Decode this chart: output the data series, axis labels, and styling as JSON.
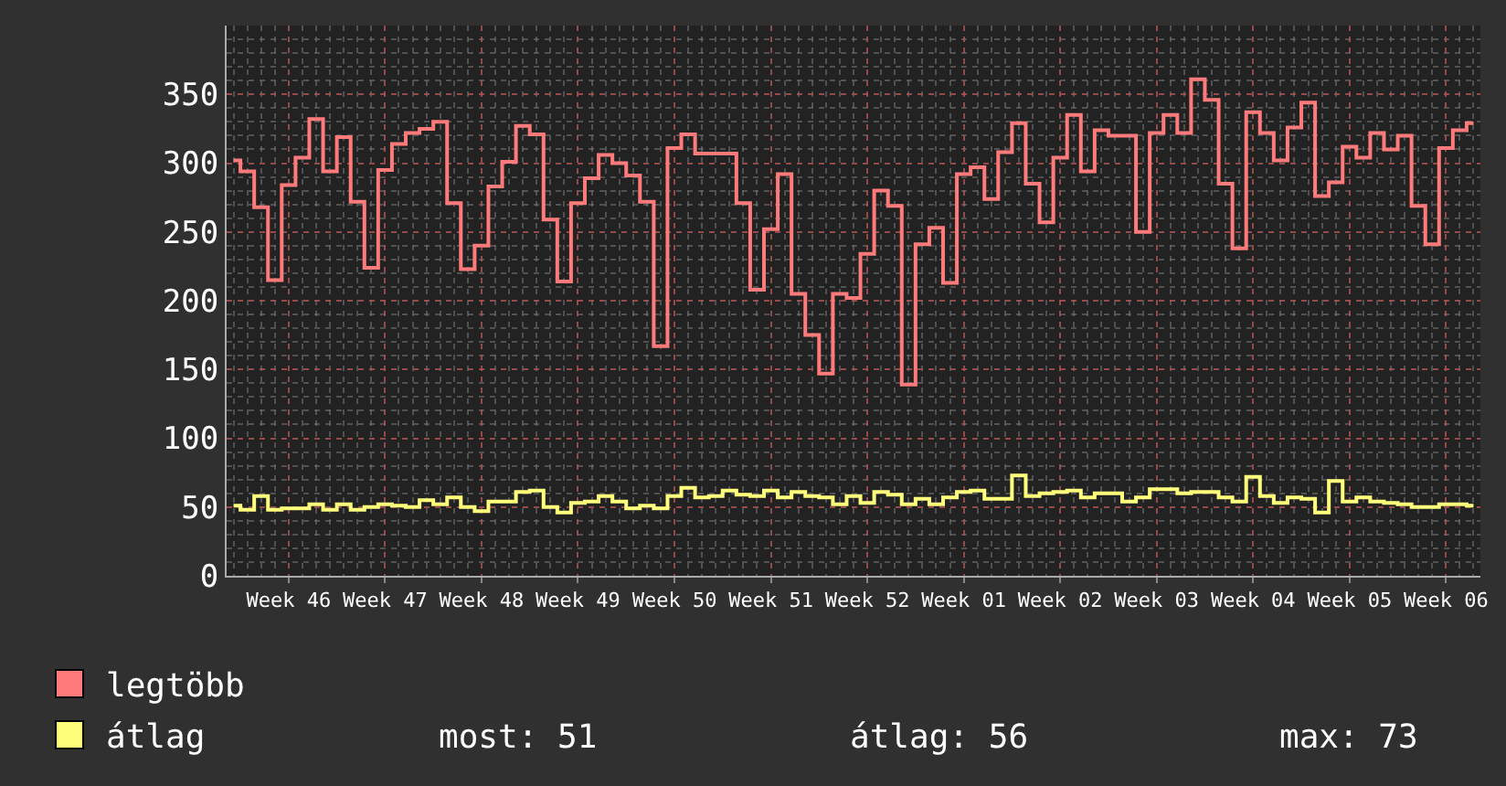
{
  "chart_data": {
    "type": "step",
    "categories": [
      null,
      null,
      null,
      null,
      "Week 46",
      null,
      null,
      null,
      null,
      null,
      null,
      "Week 47",
      null,
      null,
      null,
      null,
      null,
      null,
      "Week 48",
      null,
      null,
      null,
      null,
      null,
      null,
      "Week 49",
      null,
      null,
      null,
      null,
      null,
      null,
      "Week 50",
      null,
      null,
      null,
      null,
      null,
      null,
      "Week 51",
      null,
      null,
      null,
      null,
      null,
      null,
      "Week 52",
      null,
      null,
      null,
      null,
      null,
      null,
      "Week 01",
      null,
      null,
      null,
      null,
      null,
      null,
      "Week 02",
      null,
      null,
      null,
      null,
      null,
      null,
      "Week 03",
      null,
      null,
      null,
      null,
      null,
      null,
      "Week 04",
      null,
      null,
      null,
      null,
      null,
      null,
      "Week 05",
      null,
      null,
      null,
      null,
      null,
      null,
      "Week 06",
      null,
      null
    ],
    "series": [
      {
        "name": "legtöbb",
        "color": "#ff7b7b",
        "values": [
          302,
          294,
          268,
          215,
          284,
          304,
          332,
          294,
          319,
          272,
          224,
          295,
          314,
          322,
          325,
          330,
          271,
          223,
          240,
          283,
          301,
          327,
          321,
          259,
          214,
          271,
          289,
          306,
          300,
          291,
          272,
          167,
          311,
          321,
          307,
          307,
          307,
          271,
          208,
          252,
          292,
          205,
          175,
          147,
          205,
          202,
          234,
          280,
          269,
          139,
          241,
          253,
          213,
          292,
          297,
          274,
          308,
          329,
          285,
          257,
          304,
          335,
          294,
          324,
          320,
          320,
          250,
          322,
          335,
          322,
          361,
          346,
          285,
          238,
          337,
          322,
          302,
          326,
          344,
          276,
          286,
          312,
          304,
          322,
          310,
          320,
          269,
          241,
          311,
          324,
          329
        ]
      },
      {
        "name": "átlag",
        "color": "#ffff7b",
        "values": [
          51,
          48,
          58,
          48,
          49,
          49,
          52,
          48,
          52,
          48,
          50,
          52,
          51,
          50,
          55,
          52,
          57,
          50,
          47,
          54,
          54,
          61,
          62,
          50,
          46,
          53,
          54,
          58,
          54,
          49,
          51,
          49,
          58,
          64,
          57,
          58,
          62,
          59,
          58,
          62,
          57,
          61,
          58,
          57,
          52,
          58,
          53,
          61,
          59,
          52,
          56,
          52,
          57,
          61,
          62,
          56,
          56,
          73,
          58,
          60,
          61,
          62,
          57,
          60,
          60,
          54,
          57,
          63,
          63,
          60,
          61,
          61,
          57,
          54,
          72,
          58,
          53,
          57,
          56,
          46,
          69,
          54,
          57,
          54,
          53,
          52,
          50,
          50,
          52,
          52,
          51
        ]
      }
    ],
    "ylim": [
      0,
      400
    ],
    "yticks": [
      0,
      50,
      100,
      150,
      200,
      250,
      300,
      350
    ],
    "grid": true,
    "legend": "bottom",
    "annotations": [
      "most: 51",
      "átlag: 56",
      "max: 73"
    ]
  }
}
